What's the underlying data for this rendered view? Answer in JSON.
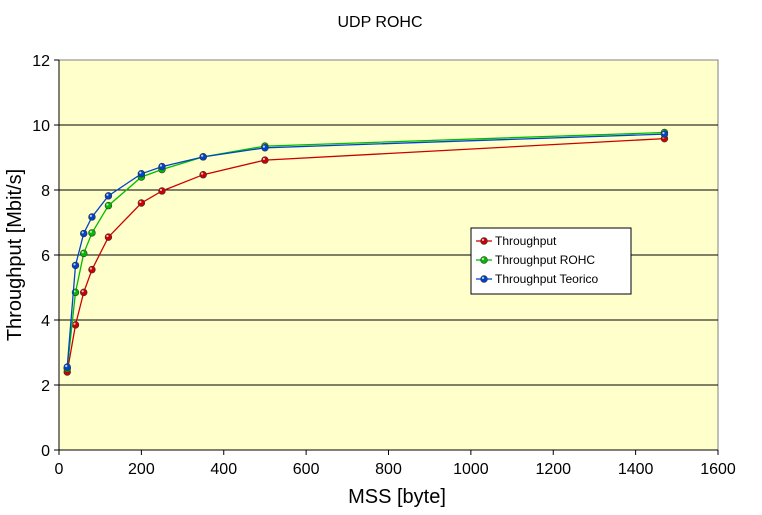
{
  "chart_data": {
    "type": "line",
    "title": "UDP ROHC",
    "xlabel": "MSS [byte]",
    "ylabel": "Throughput [Mbit/s]",
    "xlim": [
      0,
      1600
    ],
    "ylim": [
      0,
      12
    ],
    "xticks": [
      0,
      200,
      400,
      600,
      800,
      1000,
      1200,
      1400,
      1600
    ],
    "yticks": [
      0,
      2,
      4,
      6,
      8,
      10,
      12
    ],
    "grid": "horizontal",
    "legend_position": "right",
    "plot_background": "#ffffcc",
    "series": [
      {
        "name": "Throughput",
        "color": "#cc0000",
        "x": [
          20,
          40,
          60,
          80,
          120,
          200,
          250,
          350,
          500,
          1470
        ],
        "y": [
          2.4,
          3.85,
          4.85,
          5.55,
          6.55,
          7.6,
          7.97,
          8.47,
          8.92,
          9.58
        ]
      },
      {
        "name": "Throughput ROHC",
        "color": "#00bb00",
        "x": [
          20,
          40,
          60,
          80,
          120,
          200,
          250,
          350,
          500,
          1470
        ],
        "y": [
          2.5,
          4.85,
          6.05,
          6.68,
          7.52,
          8.4,
          8.63,
          9.02,
          9.35,
          9.77
        ]
      },
      {
        "name": "Throughput Teorico",
        "color": "#0044cc",
        "x": [
          20,
          40,
          60,
          80,
          120,
          200,
          250,
          350,
          500,
          1470
        ],
        "y": [
          2.55,
          5.68,
          6.66,
          7.17,
          7.82,
          8.5,
          8.72,
          9.02,
          9.3,
          9.72
        ]
      }
    ]
  }
}
